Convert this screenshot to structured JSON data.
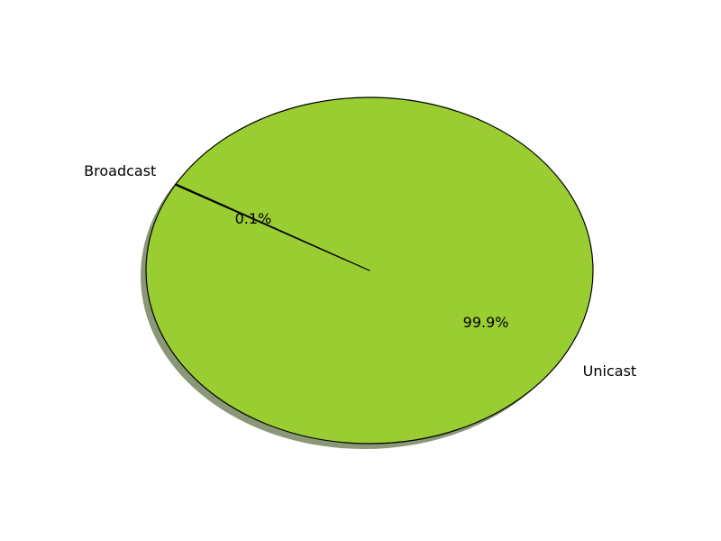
{
  "chart_data": {
    "type": "pie",
    "title": "",
    "slices": [
      {
        "label": "Broadcast",
        "value": 0.1,
        "pct_label": "0.1%",
        "color": "#9acd32"
      },
      {
        "label": "Unicast",
        "value": 99.9,
        "pct_label": "99.9%",
        "color": "#9acd32"
      }
    ],
    "start_angle_deg": 150,
    "shadow": true,
    "shadow_color": "#8a9878",
    "edge_color": "#000000",
    "legend": "none"
  }
}
